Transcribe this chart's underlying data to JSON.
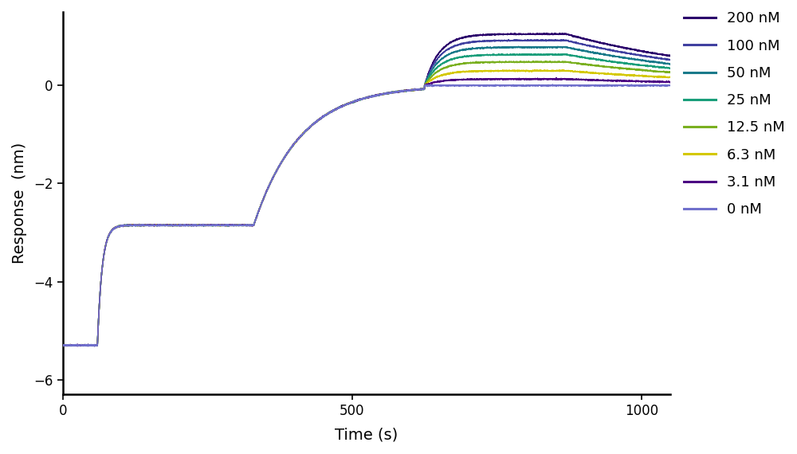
{
  "concentrations": [
    200,
    100,
    50,
    25,
    12.5,
    6.3,
    3.1,
    0
  ],
  "colors": [
    "#2b006b",
    "#4040a0",
    "#1a7a8a",
    "#1a9e7a",
    "#7ab020",
    "#d4c800",
    "#4b0082",
    "#7070cc"
  ],
  "legend_labels": [
    "200 nM",
    "100 nM",
    "50 nM",
    "25 nM",
    "12.5 nM",
    "6.3 nM",
    "3.1 nM",
    "0 nM"
  ],
  "xlabel": "Time (s)",
  "ylabel": "Response  (nm)",
  "xlim": [
    0,
    1050
  ],
  "ylim": [
    -6.3,
    1.5
  ],
  "yticks": [
    -6,
    -4,
    -2,
    0
  ],
  "xticks": [
    0,
    500,
    1000
  ],
  "background_color": "#ffffff",
  "t_baseline_start": 0,
  "t_baseline_end": 60,
  "t_load_end": 175,
  "t_plateau_end": 330,
  "t_wash_end": 625,
  "t_assoc_end": 870,
  "t_end": 1050,
  "baseline_level": -5.3,
  "loading_level": -2.85,
  "prewash_level": 0.0,
  "max_responses": [
    1.05,
    0.92,
    0.78,
    0.63,
    0.48,
    0.3,
    0.13,
    0.0
  ],
  "dissoc_end_responses": [
    0.06,
    0.04,
    0.025,
    0.015,
    0.008,
    0.003,
    0.001,
    0.0
  ],
  "noise_amp": 0.006
}
